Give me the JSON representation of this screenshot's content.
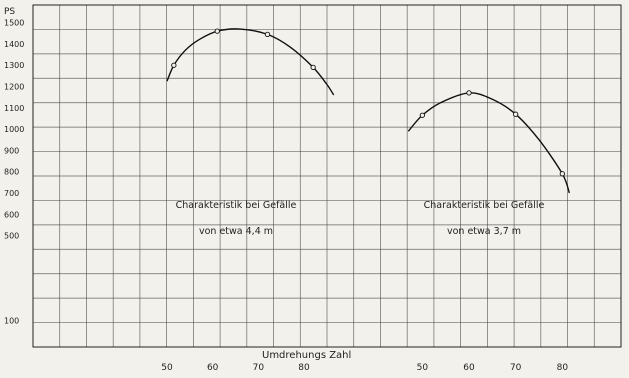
{
  "chart_data": {
    "type": "line",
    "ylabel": "PS",
    "xlabel": "Umdrehungs   Zahl",
    "y_ticks": [
      100,
      500,
      600,
      700,
      800,
      900,
      1000,
      1100,
      1200,
      1300,
      1400,
      1500
    ],
    "ylim": [
      0,
      1550
    ],
    "grid": true,
    "series": [
      {
        "x_ticks": [
          "50",
          "60",
          "70",
          "80"
        ],
        "x_tick_values": [
          50,
          60,
          70,
          80
        ],
        "xlim": [
          50,
          87
        ],
        "label_line1": "Charakteristik bei Gefälle",
        "label_line2": "von etwa 4,4 m",
        "points": [
          [
            51.5,
            1300
          ],
          [
            61,
            1460
          ],
          [
            72,
            1445
          ],
          [
            82,
            1290
          ]
        ],
        "curve": [
          [
            50,
            1225
          ],
          [
            51.5,
            1300
          ],
          [
            54,
            1370
          ],
          [
            57,
            1420
          ],
          [
            61,
            1460
          ],
          [
            66,
            1470
          ],
          [
            72,
            1445
          ],
          [
            77,
            1385
          ],
          [
            82,
            1290
          ],
          [
            85,
            1210
          ],
          [
            86.5,
            1160
          ]
        ],
        "color": "#111111"
      },
      {
        "x_ticks": [
          "50",
          "60",
          "70",
          "80"
        ],
        "x_tick_values": [
          50,
          60,
          70,
          80
        ],
        "xlim": [
          48,
          84
        ],
        "label_line1": "Charakteristik bei Gefälle",
        "label_line2": "von etwa 3,7 m",
        "points": [
          [
            50,
            1065
          ],
          [
            60,
            1170
          ],
          [
            70,
            1070
          ],
          [
            80,
            790
          ]
        ],
        "curve": [
          [
            47,
            990
          ],
          [
            50,
            1065
          ],
          [
            54,
            1125
          ],
          [
            60,
            1170
          ],
          [
            65,
            1140
          ],
          [
            70,
            1070
          ],
          [
            75,
            950
          ],
          [
            80,
            790
          ],
          [
            81.5,
            700
          ]
        ],
        "color": "#111111"
      }
    ]
  }
}
